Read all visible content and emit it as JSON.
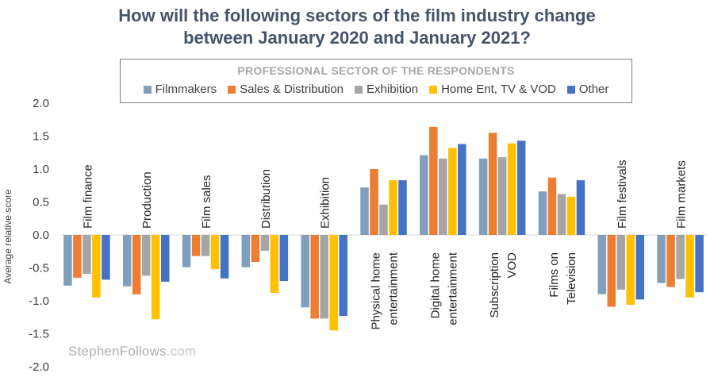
{
  "title_lines": [
    "How will the following sectors of the film industry change",
    "between January 2020 and January 2021?"
  ],
  "legend_title": "PROFESSIONAL SECTOR OF THE RESPONDENTS",
  "watermark": {
    "name": "StephenFollows",
    "domain": ".com"
  },
  "chart_data": {
    "type": "bar",
    "ylabel": "Average relative score",
    "ylim": [
      -2.0,
      2.0
    ],
    "yticks": [
      "2.0",
      "1.5",
      "1.0",
      "0.5",
      "0.0",
      "-0.5",
      "-1.0",
      "-1.5",
      "-2.0"
    ],
    "ytick_values": [
      2.0,
      1.5,
      1.0,
      0.5,
      0.0,
      -0.5,
      -1.0,
      -1.5,
      -2.0
    ],
    "categories": [
      [
        "Film finance"
      ],
      [
        "Production"
      ],
      [
        "Film sales"
      ],
      [
        "Distribution"
      ],
      [
        "Exhibition"
      ],
      [
        "Physical home",
        "entertainment"
      ],
      [
        "Digital home",
        "entertainment"
      ],
      [
        "Subscription",
        "VOD"
      ],
      [
        "Films on",
        "Television"
      ],
      [
        "Film festivals"
      ],
      [
        "Film markets"
      ]
    ],
    "series": [
      {
        "name": "Filmmakers",
        "color": "#7f9fbd",
        "values": [
          -0.77,
          -0.78,
          -0.49,
          -0.49,
          -1.1,
          0.72,
          1.21,
          1.16,
          0.66,
          -0.9,
          -0.73
        ]
      },
      {
        "name": "Sales & Distribution",
        "color": "#ed7d31",
        "values": [
          -0.65,
          -0.9,
          -0.32,
          -0.41,
          -1.27,
          1.0,
          1.64,
          1.55,
          0.87,
          -1.09,
          -0.79
        ]
      },
      {
        "name": "Exhibition",
        "color": "#a5a5a5",
        "values": [
          -0.59,
          -0.62,
          -0.32,
          -0.24,
          -1.27,
          0.46,
          1.16,
          1.18,
          0.62,
          -0.83,
          -0.67
        ]
      },
      {
        "name": "Home Ent, TV & VOD",
        "color": "#ffc000",
        "values": [
          -0.95,
          -1.28,
          -0.52,
          -0.88,
          -1.45,
          0.83,
          1.32,
          1.39,
          0.58,
          -1.06,
          -0.95
        ]
      },
      {
        "name": "Other",
        "color": "#4472c4",
        "values": [
          -0.68,
          -0.71,
          -0.66,
          -0.7,
          -1.23,
          0.83,
          1.38,
          1.43,
          0.83,
          -0.98,
          -0.87
        ]
      }
    ]
  }
}
